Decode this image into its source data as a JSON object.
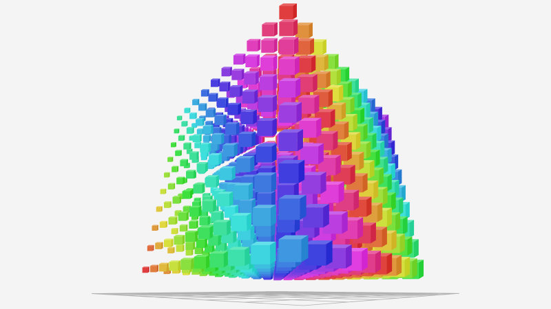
{
  "scene": {
    "background": "#f4f4f4",
    "grid_color": "#b0b0b0",
    "grid_divisions": 10,
    "cubes_per_axis": 10,
    "color_scheme": "rainbow-hue"
  }
}
